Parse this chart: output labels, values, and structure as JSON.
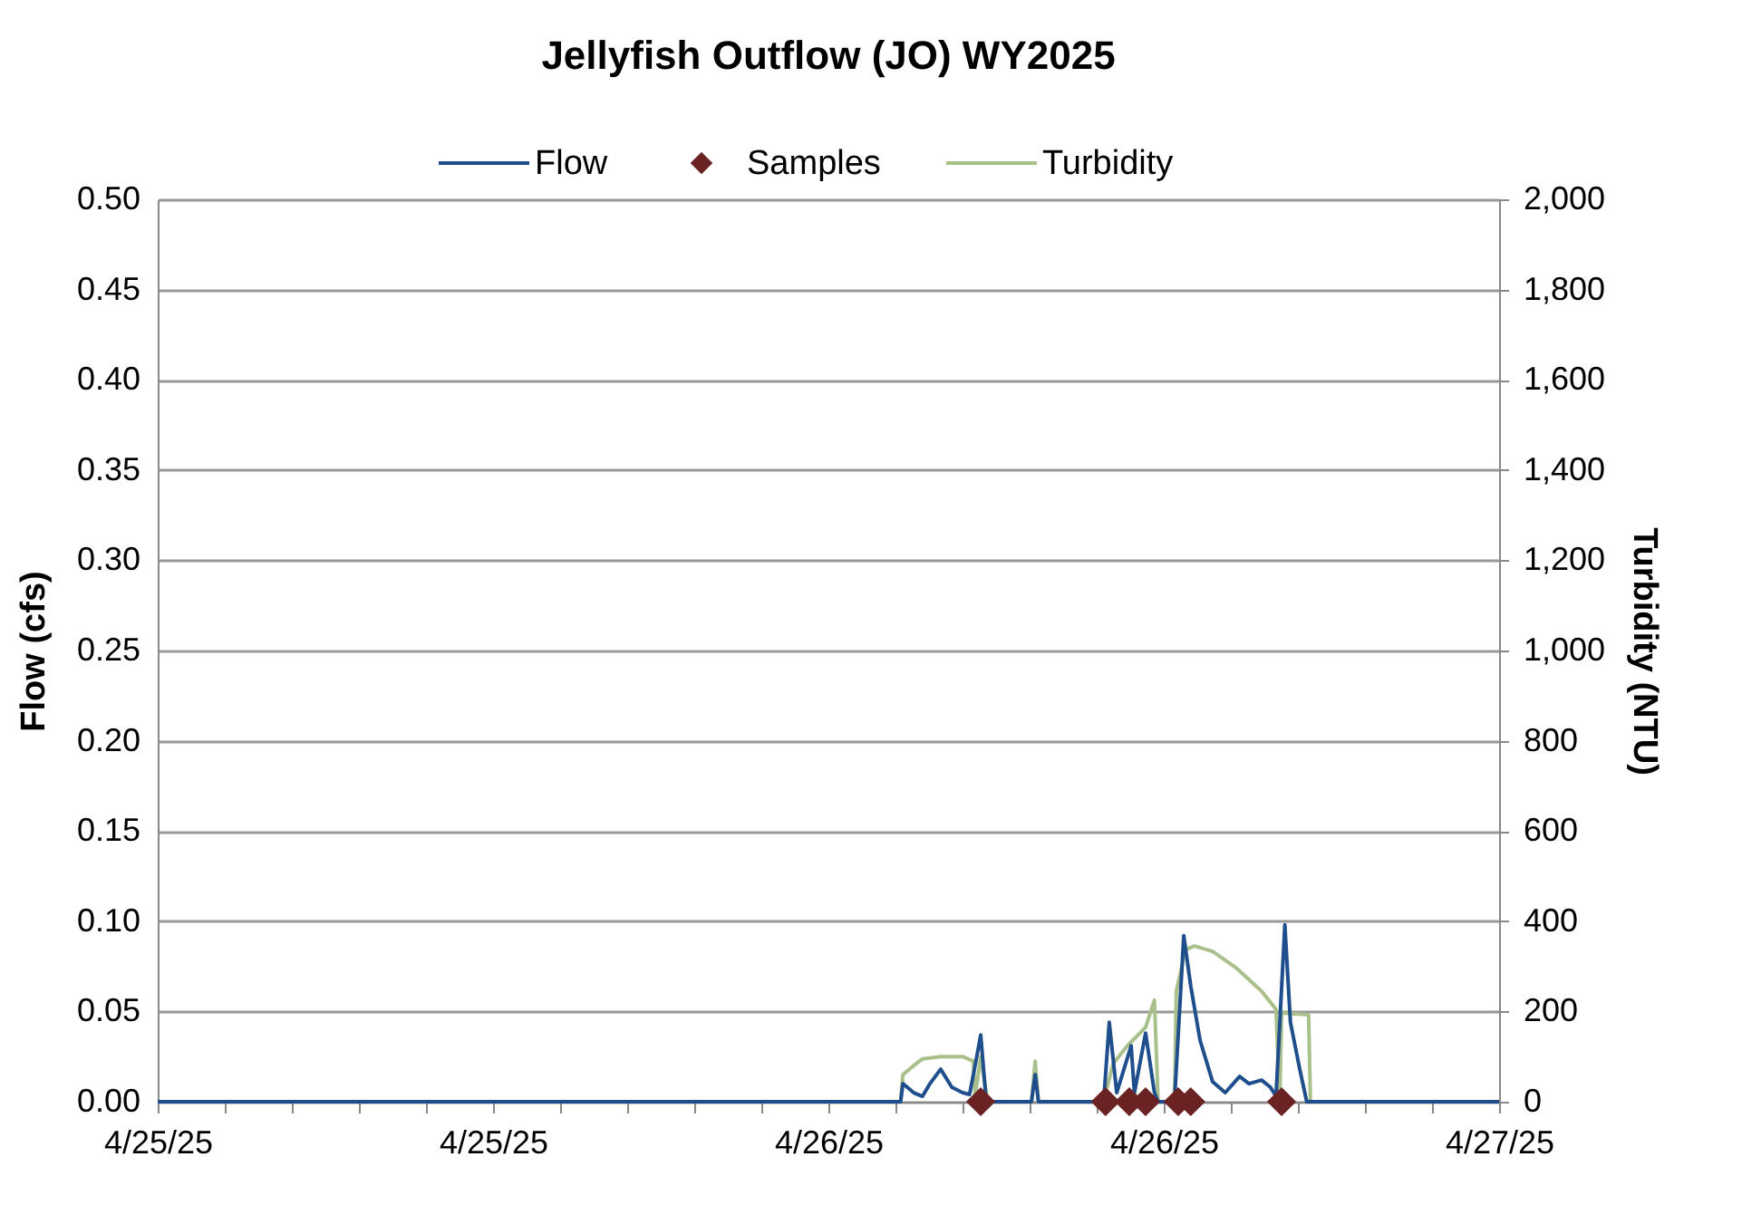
{
  "chart_data": {
    "type": "line",
    "title": "Jellyfish Outflow (JO) WY2025",
    "ylabel": "Flow (cfs)",
    "y2label": "Turbidity (NTU)",
    "xlim": [
      "2025-04-25T00:00",
      "2025-04-27T00:00"
    ],
    "xticks": [
      {
        "value": "2025-04-25T00:00",
        "label": "4/25/25"
      },
      {
        "value": "2025-04-25T02:24",
        "label": null
      },
      {
        "value": "2025-04-25T04:48",
        "label": null
      },
      {
        "value": "2025-04-25T07:12",
        "label": null
      },
      {
        "value": "2025-04-25T09:36",
        "label": null
      },
      {
        "value": "2025-04-25T12:00",
        "label": "4/25/25"
      },
      {
        "value": "2025-04-25T14:24",
        "label": null
      },
      {
        "value": "2025-04-25T16:48",
        "label": null
      },
      {
        "value": "2025-04-25T19:12",
        "label": null
      },
      {
        "value": "2025-04-25T21:36",
        "label": null
      },
      {
        "value": "2025-04-26T00:00",
        "label": "4/26/25"
      },
      {
        "value": "2025-04-26T02:24",
        "label": null
      },
      {
        "value": "2025-04-26T04:48",
        "label": null
      },
      {
        "value": "2025-04-26T07:12",
        "label": null
      },
      {
        "value": "2025-04-26T09:36",
        "label": null
      },
      {
        "value": "2025-04-26T12:00",
        "label": "4/26/25"
      },
      {
        "value": "2025-04-26T14:24",
        "label": null
      },
      {
        "value": "2025-04-26T16:48",
        "label": null
      },
      {
        "value": "2025-04-26T19:12",
        "label": null
      },
      {
        "value": "2025-04-26T21:36",
        "label": null
      },
      {
        "value": "2025-04-27T00:00",
        "label": "4/27/25"
      }
    ],
    "ylim": [
      0,
      0.5
    ],
    "yticks": [
      {
        "value": 0,
        "label": "0.00"
      },
      {
        "value": 0.05,
        "label": "0.05"
      },
      {
        "value": 0.1,
        "label": "0.10"
      },
      {
        "value": 0.15,
        "label": "0.15"
      },
      {
        "value": 0.2,
        "label": "0.20"
      },
      {
        "value": 0.25,
        "label": "0.25"
      },
      {
        "value": 0.3,
        "label": "0.30"
      },
      {
        "value": 0.35,
        "label": "0.35"
      },
      {
        "value": 0.4,
        "label": "0.40"
      },
      {
        "value": 0.45,
        "label": "0.45"
      },
      {
        "value": 0.5,
        "label": "0.50"
      }
    ],
    "y2lim": [
      0,
      2000
    ],
    "y2ticks": [
      0,
      200,
      400,
      600,
      800,
      {
        "value": 1000,
        "label": "1,000"
      },
      {
        "value": 1200,
        "label": "1,200"
      },
      {
        "value": 1400,
        "label": "1,400"
      },
      {
        "value": 1600,
        "label": "1,600"
      },
      {
        "value": 1800,
        "label": "1,800"
      },
      {
        "value": 2000,
        "label": "2,000"
      }
    ],
    "grid": "y",
    "legend": "top",
    "series": [
      {
        "name": "Flow",
        "type": "line",
        "color": "#1f4e8c",
        "marker": "none",
        "line_style": "solid",
        "x": [
          "2025-04-25T00:00",
          "2025-04-26T02:35",
          "2025-04-26T02:40",
          "2025-04-26T03:03",
          "2025-04-26T03:22",
          "2025-04-26T03:38",
          "2025-04-26T04:01",
          "2025-04-26T04:25",
          "2025-04-26T04:48",
          "2025-04-26T05:03",
          "2025-04-26T05:15",
          "2025-04-26T05:27",
          "2025-04-26T05:38",
          "2025-04-26T05:50",
          "2025-04-26T07:16",
          "2025-04-26T07:24",
          "2025-04-26T07:31",
          "2025-04-26T09:51",
          "2025-04-26T10:03",
          "2025-04-26T10:19",
          "2025-04-26T10:50",
          "2025-04-26T10:57",
          "2025-04-26T11:21",
          "2025-04-26T11:40",
          "2025-04-26T11:48",
          "2025-04-26T12:23",
          "2025-04-26T12:43",
          "2025-04-26T12:58",
          "2025-04-26T13:18",
          "2025-04-26T13:45",
          "2025-04-26T14:12",
          "2025-04-26T14:43",
          "2025-04-26T15:03",
          "2025-04-26T15:30",
          "2025-04-26T15:49",
          "2025-04-26T16:01",
          "2025-04-26T16:20",
          "2025-04-26T16:32",
          "2025-04-26T16:52",
          "2025-04-26T17:07",
          "2025-04-27T00:00"
        ],
        "values": [
          0,
          0,
          0.01,
          0.005,
          0.003,
          0.01,
          0.018,
          0.008,
          0.005,
          0.004,
          0.02,
          0.037,
          0.003,
          0,
          0,
          0.015,
          0,
          0,
          0.044,
          0.005,
          0.031,
          0.005,
          0.038,
          0.005,
          0,
          0,
          0.092,
          0.064,
          0.034,
          0.011,
          0.005,
          0.014,
          0.01,
          0.012,
          0.008,
          0.003,
          0.098,
          0.044,
          0.018,
          0,
          0
        ]
      },
      {
        "name": "Samples",
        "type": "scatter",
        "color": "#6b2222",
        "marker": "diamond",
        "x": [
          "2025-04-26T05:27",
          "2025-04-26T09:55",
          "2025-04-26T10:46",
          "2025-04-26T11:21",
          "2025-04-26T12:31",
          "2025-04-26T12:58",
          "2025-04-26T16:13"
        ],
        "values": [
          0,
          0,
          0,
          0,
          0,
          0,
          0
        ]
      },
      {
        "name": "Turbidity",
        "type": "line",
        "axis": "y2",
        "color": "#a9c08a",
        "marker": "none",
        "line_style": "solid",
        "x": [
          "2025-04-25T00:00",
          "2025-04-26T02:35",
          "2025-04-26T02:40",
          "2025-04-26T03:03",
          "2025-04-26T03:22",
          "2025-04-26T04:01",
          "2025-04-26T04:48",
          "2025-04-26T05:11",
          "2025-04-26T05:15",
          "2025-04-26T05:27",
          "2025-04-26T05:42",
          "2025-04-26T07:16",
          "2025-04-26T07:24",
          "2025-04-26T07:31",
          "2025-04-26T09:51",
          "2025-04-26T10:11",
          "2025-04-26T10:42",
          "2025-04-26T11:21",
          "2025-04-26T11:40",
          "2025-04-26T11:48",
          "2025-04-26T12:23",
          "2025-04-26T12:27",
          "2025-04-26T12:47",
          "2025-04-26T13:06",
          "2025-04-26T13:45",
          "2025-04-26T14:35",
          "2025-04-26T15:30",
          "2025-04-26T16:01",
          "2025-04-26T16:09",
          "2025-04-26T16:13",
          "2025-04-26T17:11",
          "2025-04-26T17:15",
          "2025-04-27T00:00"
        ],
        "values": [
          0,
          0,
          60,
          80,
          95,
          100,
          100,
          90,
          10,
          100,
          0,
          0,
          90,
          0,
          0,
          84,
          124,
          165,
          225,
          0,
          0,
          245,
          337,
          345,
          333,
          297,
          245,
          205,
          0,
          197,
          193,
          0,
          0
        ]
      }
    ]
  }
}
